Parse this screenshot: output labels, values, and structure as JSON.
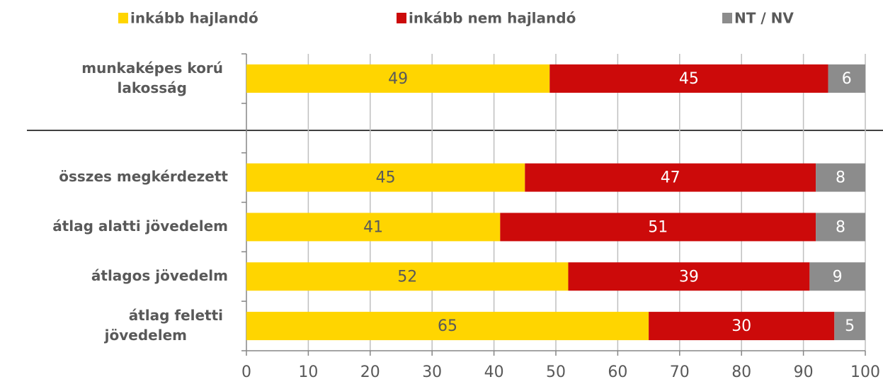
{
  "chart_data": {
    "type": "stacked-barh",
    "categories": [
      "munkaképes korú lakosság",
      null,
      "összes megkérdezett",
      "átlag alatti jövedelem",
      "átlagos jövedelm",
      "átlag feletti jövedelem"
    ],
    "series": [
      {
        "name": "inkább hajlandó",
        "color": "#ffd500",
        "values": [
          49,
          null,
          45,
          41,
          52,
          65
        ]
      },
      {
        "name": "inkább nem hajlandó",
        "color": "#cc0a0a",
        "values": [
          45,
          null,
          47,
          51,
          39,
          30
        ]
      },
      {
        "name": "NT / NV",
        "color": "#8c8c8c",
        "values": [
          6,
          null,
          8,
          8,
          9,
          5
        ]
      }
    ],
    "xlim": [
      0,
      100
    ],
    "xticks": [
      0,
      10,
      20,
      30,
      40,
      50,
      60,
      70,
      80,
      90,
      100
    ],
    "grid": true,
    "legend": "top"
  }
}
